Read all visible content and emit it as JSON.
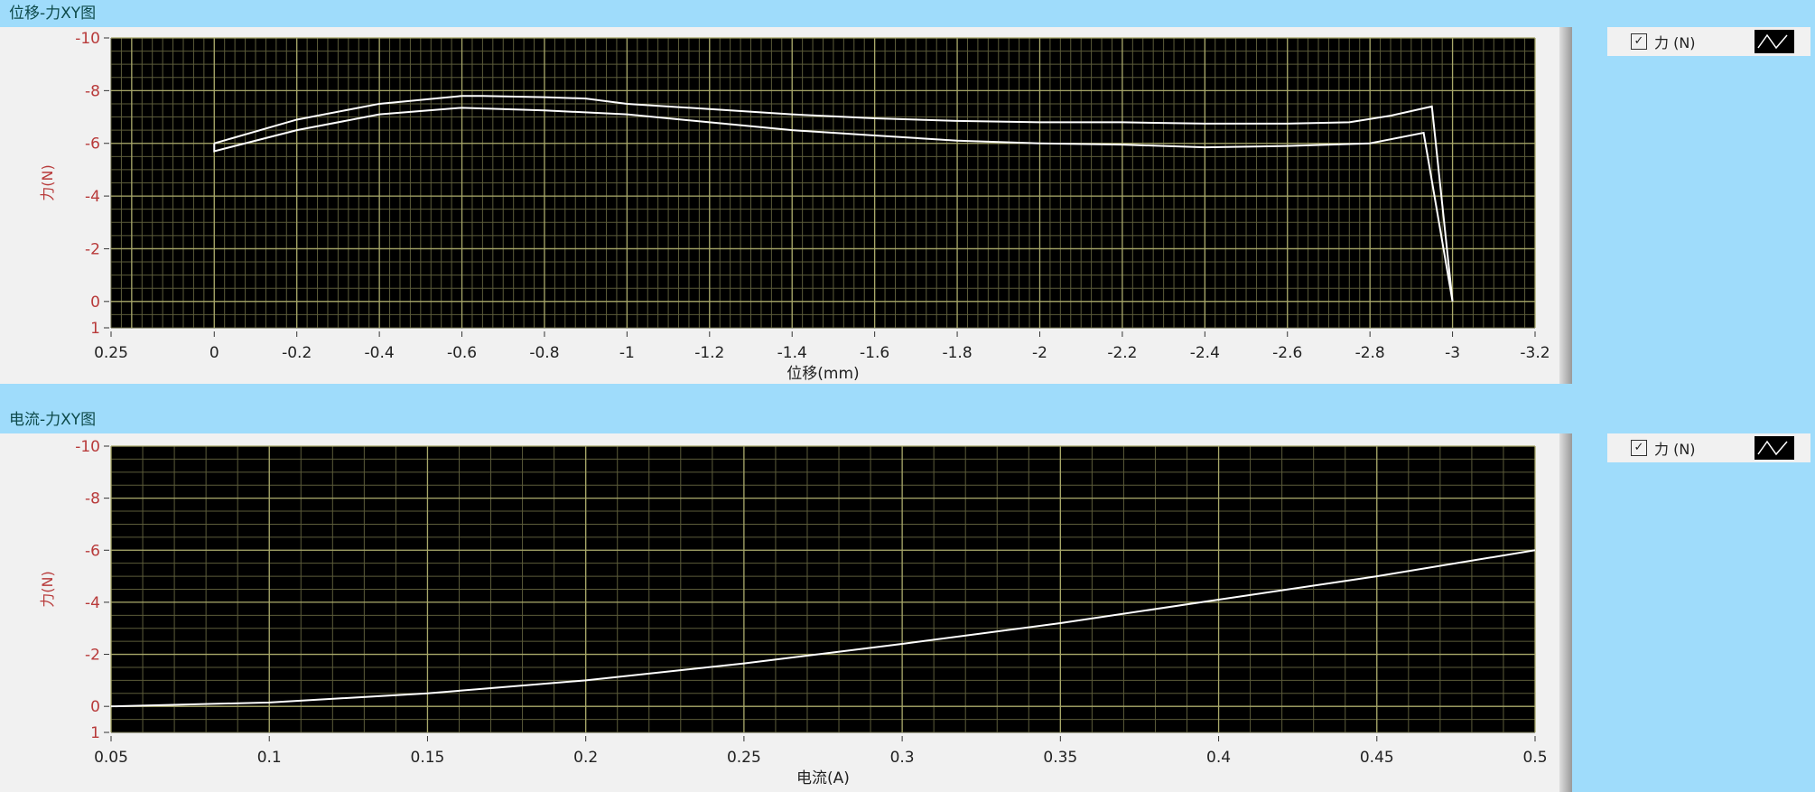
{
  "charts": [
    {
      "title": "位移-力XY图",
      "legend": {
        "checked": true,
        "label": "力 (N)"
      }
    },
    {
      "title": "电流-力XY图",
      "legend": {
        "checked": true,
        "label": "力 (N)"
      }
    }
  ],
  "colors": {
    "plot_bg": "#000000",
    "grid_major": "#a8a86a",
    "grid_minor": "#5c5c3a",
    "trace": "#ffffff",
    "y_tick": "#b83a3a",
    "title_bar": "#9fdcfb"
  },
  "chart_data": [
    {
      "type": "line",
      "title": "位移-力XY图",
      "xlabel": "位移(mm)",
      "ylabel": "力(N)",
      "xlim": [
        0.25,
        -3.2
      ],
      "ylim": [
        1,
        -10
      ],
      "grid": true,
      "legend": "right",
      "xticks": [
        "0.25",
        "0",
        "-0.2",
        "-0.4",
        "-0.6",
        "-0.8",
        "-1",
        "-1.2",
        "-1.4",
        "-1.6",
        "-1.8",
        "-2",
        "-2.2",
        "-2.4",
        "-2.6",
        "-2.8",
        "-3",
        "-3.2"
      ],
      "yticks": [
        "-10",
        "-8",
        "-6",
        "-4",
        "-2",
        "0",
        "1"
      ],
      "series": [
        {
          "name": "力 (N)",
          "x": [
            0,
            -0.2,
            -0.4,
            -0.6,
            -0.65,
            -0.8,
            -0.9,
            -1,
            -1.2,
            -1.4,
            -1.6,
            -1.8,
            -2,
            -2.2,
            -2.4,
            -2.6,
            -2.75,
            -2.85,
            -2.95,
            -3.0,
            -2.93,
            -2.8,
            -2.6,
            -2.4,
            -2.2,
            -2,
            -1.8,
            -1.6,
            -1.4,
            -1.2,
            -1,
            -0.8,
            -0.6,
            -0.4,
            -0.2,
            0,
            0
          ],
          "y": [
            -6.0,
            -6.9,
            -7.5,
            -7.8,
            -7.8,
            -7.75,
            -7.7,
            -7.5,
            -7.3,
            -7.1,
            -6.95,
            -6.85,
            -6.8,
            -6.8,
            -6.75,
            -6.75,
            -6.8,
            -7.05,
            -7.4,
            0,
            -6.4,
            -6.0,
            -5.9,
            -5.85,
            -5.95,
            -6.0,
            -6.1,
            -6.3,
            -6.5,
            -6.8,
            -7.1,
            -7.25,
            -7.35,
            -7.1,
            -6.5,
            -5.7,
            -6.0
          ]
        }
      ]
    },
    {
      "type": "line",
      "title": "电流-力XY图",
      "xlabel": "电流(A)",
      "ylabel": "力(N)",
      "xlim": [
        0.05,
        0.5
      ],
      "ylim": [
        1,
        -10
      ],
      "grid": true,
      "legend": "right",
      "xticks": [
        "0.05",
        "0.1",
        "0.15",
        "0.2",
        "0.25",
        "0.3",
        "0.35",
        "0.4",
        "0.45",
        "0.5"
      ],
      "yticks": [
        "-10",
        "-8",
        "-6",
        "-4",
        "-2",
        "0",
        "1"
      ],
      "series": [
        {
          "name": "力 (N)",
          "x": [
            0.05,
            0.1,
            0.15,
            0.2,
            0.25,
            0.3,
            0.35,
            0.4,
            0.45,
            0.5
          ],
          "y": [
            0,
            -0.15,
            -0.5,
            -1.0,
            -1.65,
            -2.4,
            -3.2,
            -4.1,
            -5.0,
            -6.0
          ]
        }
      ]
    }
  ]
}
